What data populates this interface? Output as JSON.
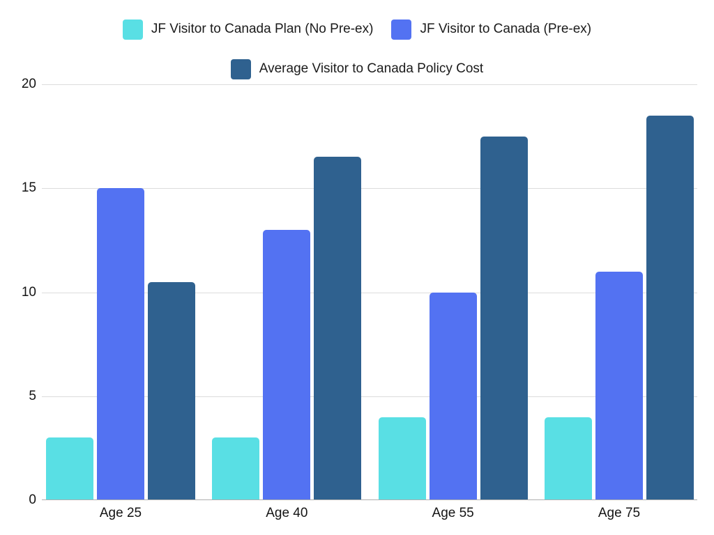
{
  "chart_data": {
    "type": "bar",
    "categories": [
      "Age 25",
      "Age 40",
      "Age 55",
      "Age 75"
    ],
    "series": [
      {
        "name": "JF Visitor to Canada Plan (No Pre-ex)",
        "color": "#59DFE4",
        "values": [
          3,
          3,
          4,
          4
        ]
      },
      {
        "name": "JF Visitor to Canada (Pre-ex)",
        "color": "#5372F2",
        "values": [
          15,
          13,
          10,
          11
        ]
      },
      {
        "name": "Average Visitor to Canada Policy Cost",
        "color": "#2F618F",
        "values": [
          10.5,
          16.5,
          17.5,
          18.5
        ]
      }
    ],
    "title": "",
    "xlabel": "",
    "ylabel": "",
    "ylim": [
      0,
      20
    ],
    "yticks": [
      0,
      5,
      10,
      15,
      20
    ],
    "grid": true,
    "legend_position": "top",
    "legend_rows": [
      [
        0,
        1
      ],
      [
        2
      ]
    ]
  },
  "colors": {
    "background": "#ffffff",
    "gridline": "#dcdcdc",
    "axis_line": "#aeaeae",
    "text": "#1b1b1b"
  }
}
